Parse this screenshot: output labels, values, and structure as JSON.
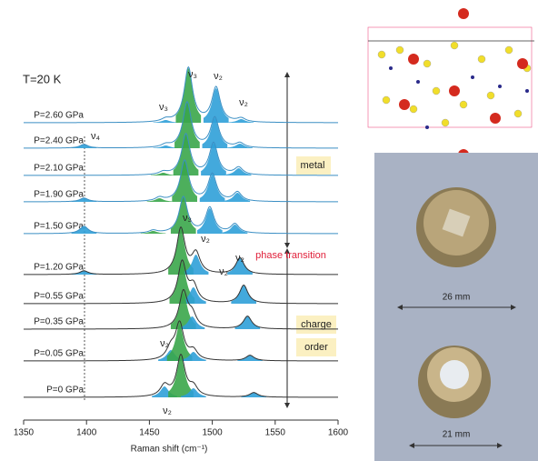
{
  "chart_data": {
    "type": "spectra",
    "title": "T=20 K",
    "x_label": "Raman shift (cm⁻¹)",
    "xlim": [
      1350,
      1600
    ],
    "xticks": [
      1350,
      1400,
      1450,
      1500,
      1550,
      1600
    ],
    "series": [
      {
        "name": "P=2.60 GPa",
        "color": "#3b8fc4",
        "x": [
          1463,
          1481,
          1503,
          1523
        ],
        "values": [
          3,
          60,
          38,
          4
        ],
        "fills": [
          "#2fa0d8",
          "#3aa64a",
          "#2fa0d8",
          "#2fa0d8"
        ]
      },
      {
        "name": "P=2.40 GPa",
        "color": "#3b8fc4",
        "x": [
          1398,
          1463,
          1480,
          1502,
          1522
        ],
        "values": [
          4,
          3,
          50,
          33,
          5
        ],
        "fills": [
          "#2fa0d8",
          "#2fa0d8",
          "#3aa64a",
          "#2fa0d8",
          "#2fa0d8"
        ]
      },
      {
        "name": "P=2.10 GPa",
        "color": "#3b8fc4",
        "x": [
          1461,
          1479,
          1501,
          1521
        ],
        "values": [
          3,
          45,
          35,
          8
        ],
        "fills": [
          "#3aa64a",
          "#3aa64a",
          "#2fa0d8",
          "#2fa0d8"
        ]
      },
      {
        "name": "P=1.90 GPa",
        "color": "#3b8fc4",
        "x": [
          1398,
          1458,
          1478,
          1500,
          1520
        ],
        "values": [
          4,
          4,
          45,
          30,
          10
        ],
        "fills": [
          "#2fa0d8",
          "#3aa64a",
          "#3aa64a",
          "#2fa0d8",
          "#2fa0d8"
        ]
      },
      {
        "name": "P=1.50 GPa",
        "color": "#3b8fc4",
        "x": [
          1398,
          1453,
          1477,
          1498,
          1518
        ],
        "values": [
          8,
          3,
          40,
          28,
          10
        ],
        "fills": [
          "#2fa0d8",
          "#3aa64a",
          "#3aa64a",
          "#2fa0d8",
          "#2fa0d8"
        ]
      },
      {
        "name": "P=1.20 GPa",
        "color": "#333333",
        "x": [
          1398,
          1475,
          1487,
          1522
        ],
        "values": [
          4,
          50,
          22,
          18
        ],
        "fills": [
          "#2fa0d8",
          "#3aa64a",
          "#2fa0d8",
          "#2fa0d8"
        ]
      },
      {
        "name": "P=0.55 GPa",
        "color": "#333333",
        "x": [
          1476,
          1485,
          1525
        ],
        "values": [
          45,
          18,
          20
        ],
        "fills": [
          "#3aa64a",
          "#2fa0d8",
          "#2fa0d8"
        ]
      },
      {
        "name": "P=0.35 GPa",
        "color": "#333333",
        "x": [
          1477,
          1484,
          1528
        ],
        "values": [
          40,
          14,
          14
        ],
        "fills": [
          "#3aa64a",
          "#2fa0d8",
          "#2fa0d8"
        ]
      },
      {
        "name": "P=0.05 GPa",
        "color": "#333333",
        "x": [
          1467,
          1474,
          1485,
          1530
        ],
        "values": [
          12,
          40,
          10,
          6
        ],
        "fills": [
          "#2fa0d8",
          "#3aa64a",
          "#2fa0d8",
          "#2fa0d8"
        ]
      },
      {
        "name": "P=0 GPa",
        "color": "#333333",
        "x": [
          1462,
          1475,
          1485,
          1533
        ],
        "values": [
          12,
          45,
          10,
          5
        ],
        "fills": [
          "#2fa0d8",
          "#3aa64a",
          "#2fa0d8",
          "#2fa0d8"
        ]
      }
    ],
    "annotations": [
      "ν₃",
      "ν₂",
      "ν₃",
      "ν₂",
      "ν₄",
      "metal",
      "phase transition",
      "ν₃",
      "ν₂",
      "ν₂",
      "ν₂",
      "charge",
      "order",
      "ν₂",
      "ν₂"
    ],
    "photo_labels": [
      "26 mm",
      "21 mm"
    ]
  }
}
